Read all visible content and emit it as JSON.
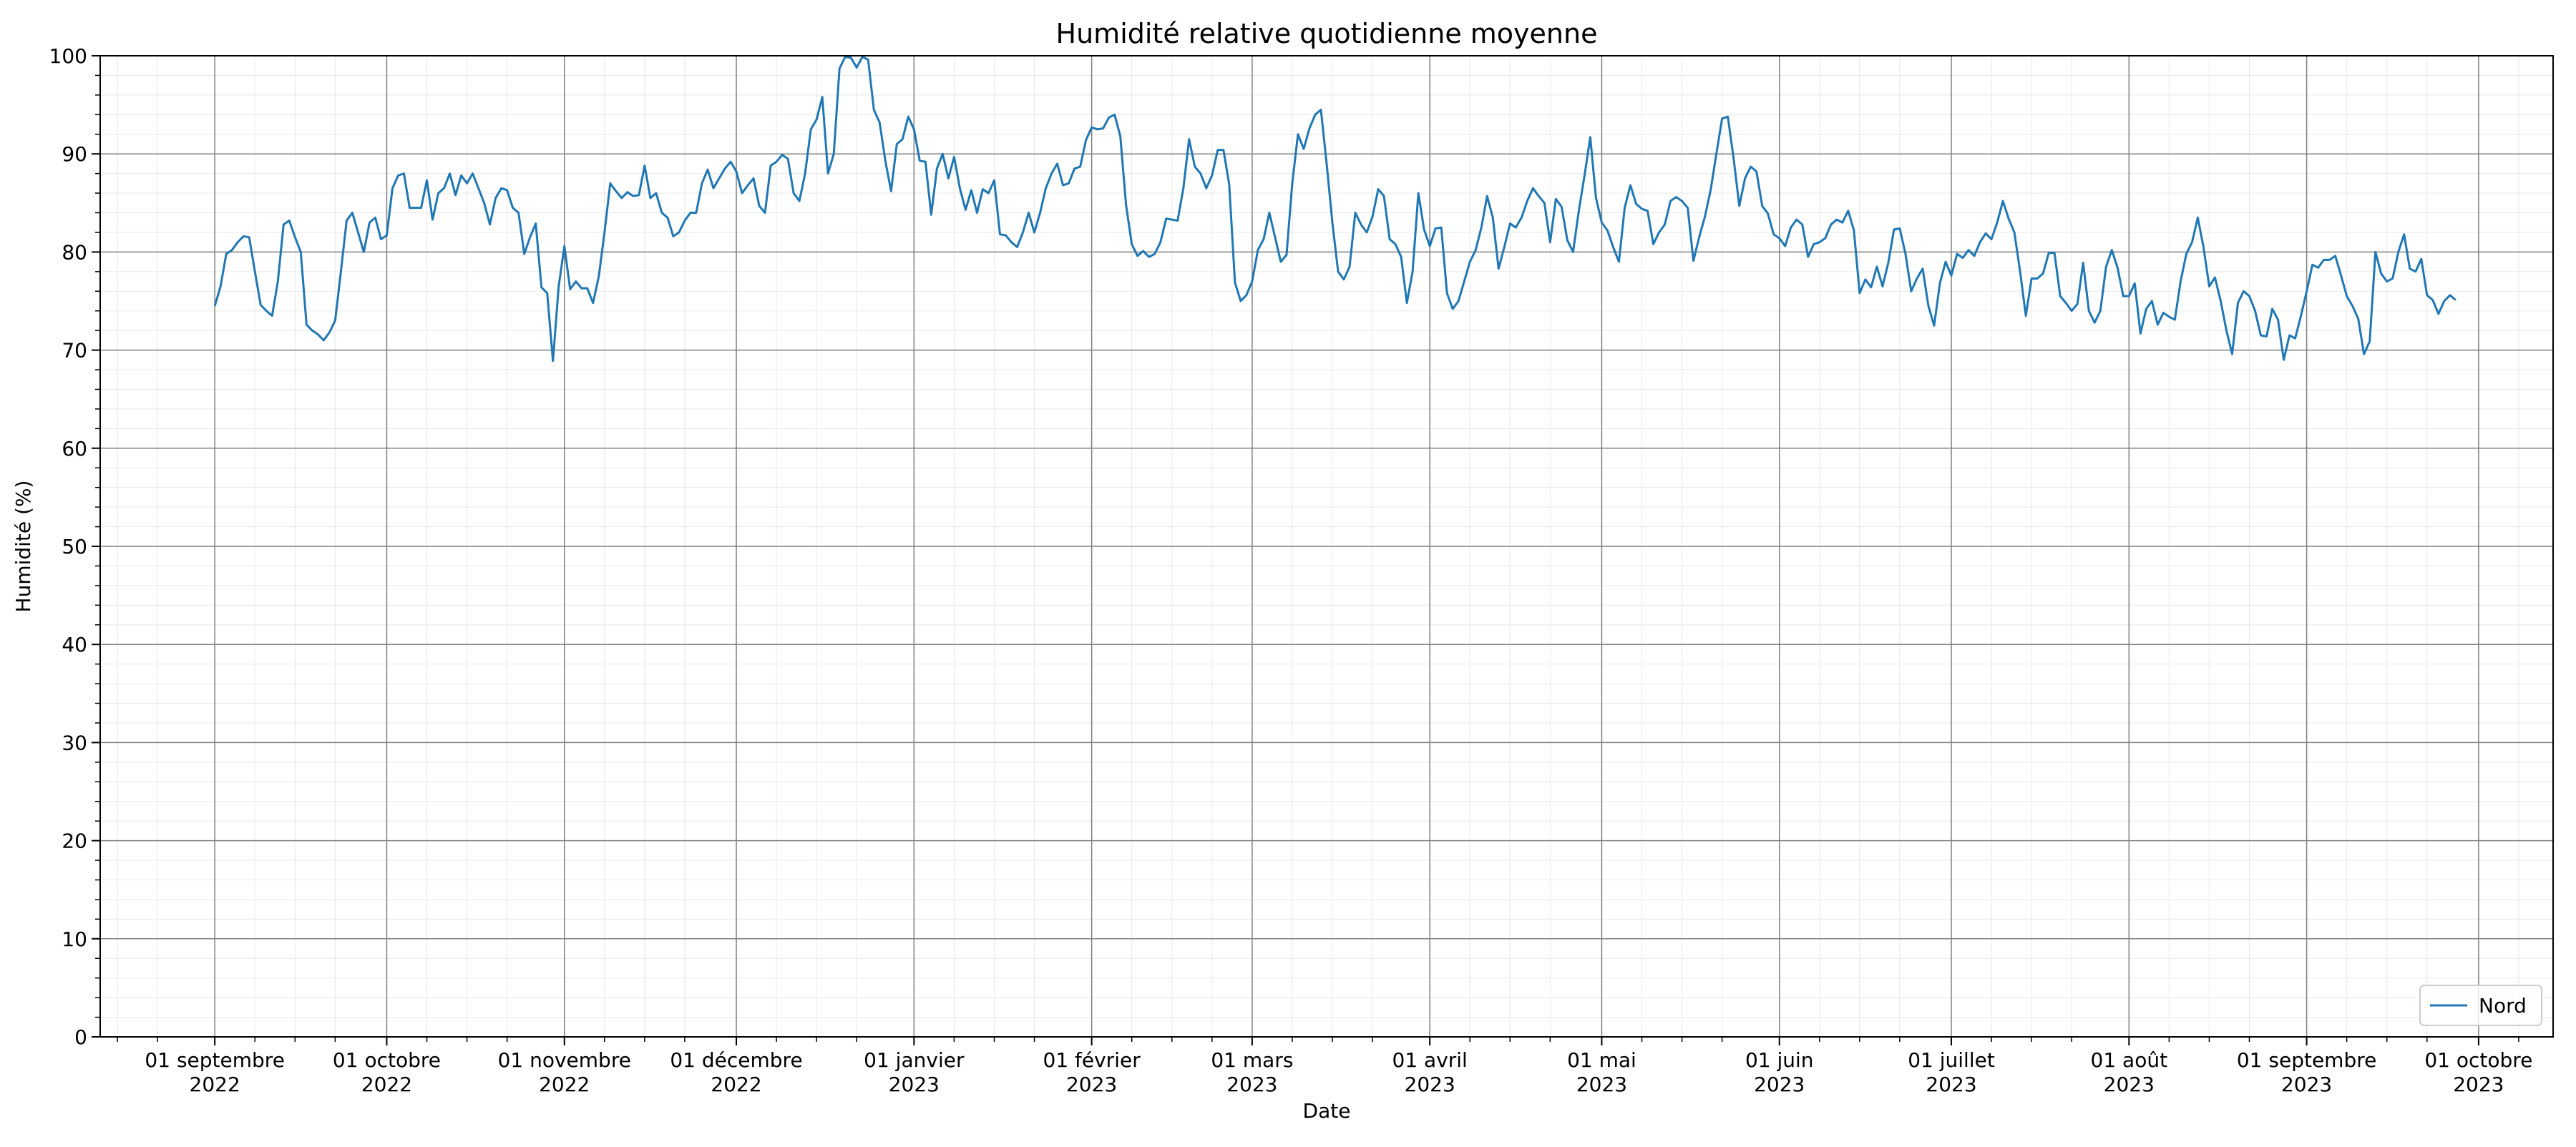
{
  "chart_data": {
    "type": "line",
    "title": "Humidité relative quotidienne moyenne",
    "xlabel": "Date",
    "ylabel": "Humidité (%)",
    "ylim": [
      0,
      100
    ],
    "xlim": [
      "2022-08-12",
      "2023-10-14"
    ],
    "y_ticks": [
      0,
      10,
      20,
      30,
      40,
      50,
      60,
      70,
      80,
      90,
      100
    ],
    "x_ticks": [
      {
        "date": "2022-09-01",
        "line1": "01 septembre",
        "line2": "2022"
      },
      {
        "date": "2022-10-01",
        "line1": "01 octobre",
        "line2": "2022"
      },
      {
        "date": "2022-11-01",
        "line1": "01 novembre",
        "line2": "2022"
      },
      {
        "date": "2022-12-01",
        "line1": "01 décembre",
        "line2": "2022"
      },
      {
        "date": "2023-01-01",
        "line1": "01 janvier",
        "line2": "2023"
      },
      {
        "date": "2023-02-01",
        "line1": "01 février",
        "line2": "2023"
      },
      {
        "date": "2023-03-01",
        "line1": "01 mars",
        "line2": "2023"
      },
      {
        "date": "2023-04-01",
        "line1": "01 avril",
        "line2": "2023"
      },
      {
        "date": "2023-05-01",
        "line1": "01 mai",
        "line2": "2023"
      },
      {
        "date": "2023-06-01",
        "line1": "01 juin",
        "line2": "2023"
      },
      {
        "date": "2023-07-01",
        "line1": "01 juillet",
        "line2": "2023"
      },
      {
        "date": "2023-08-01",
        "line1": "01 août",
        "line2": "2023"
      },
      {
        "date": "2023-09-01",
        "line1": "01 septembre",
        "line2": "2023"
      },
      {
        "date": "2023-10-01",
        "line1": "01 octobre",
        "line2": "2023"
      }
    ],
    "grid": true,
    "minor_grid": true,
    "legend_position": "bottom-right",
    "series": [
      {
        "name": "Nord",
        "color": "#1f77b4",
        "start_date": "2022-09-01",
        "values": [
          74.5,
          76.5,
          79.8,
          80.2,
          81.0,
          81.6,
          81.5,
          78.0,
          74.6,
          74.0,
          73.5,
          77.0,
          82.8,
          83.2,
          81.5,
          80.0,
          72.6,
          72.0,
          71.6,
          71.0,
          71.8,
          73.0,
          78.0,
          83.2,
          84.0,
          82.0,
          80.0,
          83.0,
          83.5,
          81.3,
          81.7,
          86.5,
          87.8,
          88.0,
          84.5,
          84.5,
          84.5,
          87.3,
          83.3,
          86.0,
          86.5,
          88.0,
          85.8,
          87.8,
          87.0,
          88.0,
          86.5,
          85.0,
          82.8,
          85.5,
          86.5,
          86.3,
          84.5,
          84.0,
          79.8,
          81.5,
          82.9,
          76.4,
          75.8,
          68.9,
          76.5,
          80.6,
          76.2,
          77.0,
          76.3,
          76.3,
          74.8,
          77.5,
          82.0,
          87.0,
          86.2,
          85.5,
          86.1,
          85.7,
          85.8,
          88.8,
          85.5,
          86.0,
          84.0,
          83.5,
          81.6,
          82.0,
          83.2,
          84.0,
          84.0,
          87.0,
          88.4,
          86.5,
          87.5,
          88.5,
          89.2,
          88.2,
          86.0,
          86.8,
          87.5,
          84.7,
          84.0,
          88.8,
          89.2,
          89.9,
          89.5,
          86.0,
          85.2,
          88.0,
          92.5,
          93.5,
          95.8,
          88.0,
          90.0,
          98.7,
          99.9,
          99.8,
          98.8,
          99.9,
          99.6,
          94.5,
          93.2,
          89.3,
          86.2,
          91.0,
          91.5,
          93.8,
          92.5,
          89.3,
          89.2,
          83.8,
          88.5,
          90.0,
          87.5,
          89.7,
          86.5,
          84.3,
          86.3,
          84.0,
          86.4,
          86.0,
          87.3,
          81.8,
          81.7,
          81.0,
          80.5,
          82.0,
          84.0,
          82.0,
          84.0,
          86.5,
          88.0,
          89.0,
          86.8,
          87.0,
          88.5,
          88.7,
          91.4,
          92.7,
          92.5,
          92.6,
          93.7,
          94.0,
          91.8,
          84.8,
          80.8,
          79.6,
          80.1,
          79.5,
          79.8,
          81.0,
          83.4,
          83.3,
          83.2,
          86.5,
          91.5,
          88.7,
          88.0,
          86.5,
          87.8,
          90.4,
          90.4,
          86.9,
          76.9,
          75.0,
          75.6,
          77.0,
          80.2,
          81.3,
          84.0,
          81.5,
          79.0,
          79.7,
          87.0,
          92.0,
          90.5,
          92.6,
          94.0,
          94.5,
          89.0,
          83.0,
          78.0,
          77.2,
          78.5,
          84.0,
          82.8,
          82.0,
          83.6,
          86.4,
          85.7,
          81.3,
          80.8,
          79.5,
          74.8,
          78.0,
          86.0,
          82.3,
          80.6,
          82.4,
          82.5,
          75.8,
          74.2,
          75.0,
          77.0,
          79.0,
          80.2,
          82.5,
          85.7,
          83.5,
          78.3,
          80.5,
          82.9,
          82.5,
          83.5,
          85.2,
          86.5,
          85.7,
          85.0,
          81.0,
          85.4,
          84.6,
          81.2,
          80.0,
          84.2,
          87.8,
          91.7,
          85.5,
          83.0,
          82.2,
          80.5,
          79.0,
          84.5,
          86.8,
          84.9,
          84.4,
          84.2,
          80.8,
          82.0,
          82.8,
          85.2,
          85.6,
          85.2,
          84.5,
          79.1,
          81.5,
          83.6,
          86.3,
          90.0,
          93.6,
          93.8,
          89.6,
          84.7,
          87.5,
          88.7,
          88.2,
          84.7,
          83.9,
          81.8,
          81.4,
          80.6,
          82.5,
          83.3,
          82.8,
          79.5,
          80.8,
          81.0,
          81.4,
          82.8,
          83.3,
          83.0,
          84.2,
          82.2,
          75.8,
          77.2,
          76.4,
          78.5,
          76.5,
          78.9,
          82.3,
          82.4,
          79.8,
          76.0,
          77.3,
          78.3,
          74.5,
          72.5,
          76.8,
          79.0,
          77.6,
          79.8,
          79.4,
          80.2,
          79.6,
          81.0,
          81.9,
          81.3,
          83.0,
          85.2,
          83.4,
          82.0,
          78.0,
          73.5,
          77.3,
          77.3,
          77.8,
          79.9,
          79.9,
          75.5,
          74.8,
          74.0,
          74.7,
          78.9,
          74.0,
          72.8,
          74.0,
          78.5,
          80.2,
          78.4,
          75.5,
          75.5,
          76.8,
          71.7,
          74.2,
          75.0,
          72.6,
          73.8,
          73.4,
          73.1,
          77.0,
          79.8,
          81.0,
          83.5,
          80.5,
          76.5,
          77.4,
          75.0,
          72.0,
          69.6,
          74.8,
          76.0,
          75.5,
          74.0,
          71.5,
          71.4,
          74.2,
          73.1,
          69.0,
          71.5,
          71.2,
          73.5,
          76.0,
          78.7,
          78.4,
          79.2,
          79.2,
          79.6,
          77.6,
          75.5,
          74.5,
          73.2,
          69.6,
          70.9,
          80.0,
          77.8,
          77.0,
          77.3,
          80.0,
          81.8,
          78.3,
          78.0,
          79.3,
          75.6,
          75.1,
          73.7,
          75.0,
          75.6,
          75.1
        ]
      }
    ]
  }
}
